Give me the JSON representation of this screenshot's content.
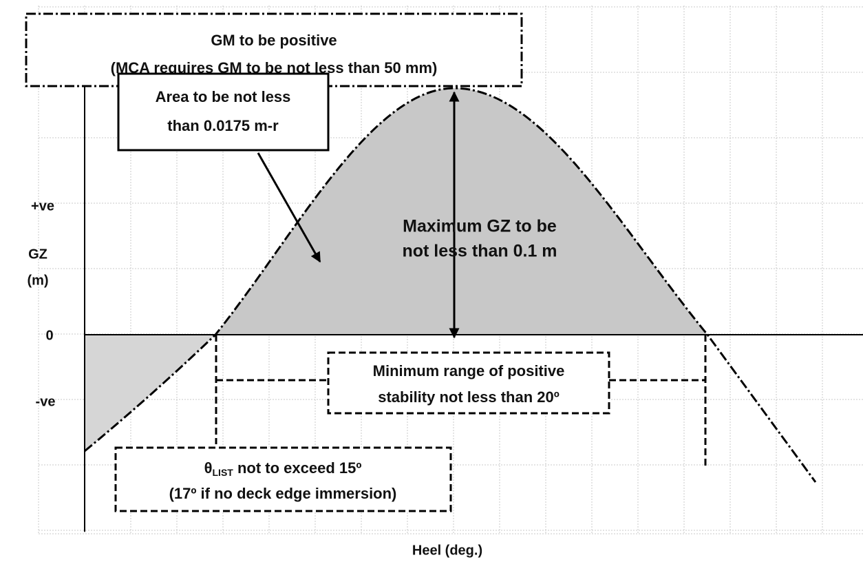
{
  "gm_box": {
    "line1": "GM to be positive",
    "line2": "(MCA requires GM to be not less than 50 mm)"
  },
  "area_box": {
    "line1": "Area to be not less",
    "line2": "than 0.0175 m-r"
  },
  "max_gz": {
    "line1": "Maximum GZ to be",
    "line2": "not less than 0.1 m"
  },
  "range_box": {
    "line1": "Minimum range of positive",
    "line2": "stability not less than 20º"
  },
  "list_box": {
    "symbol": "θ",
    "subscript": "LIST",
    "line1_rest": " not to exceed 15º",
    "line2": "(17º if no deck edge immersion)"
  },
  "axis": {
    "positive": "+ve",
    "y_label": "GZ",
    "y_unit": "(m)",
    "zero": "0",
    "negative": "-ve",
    "x_label": "Heel (deg.)"
  }
}
